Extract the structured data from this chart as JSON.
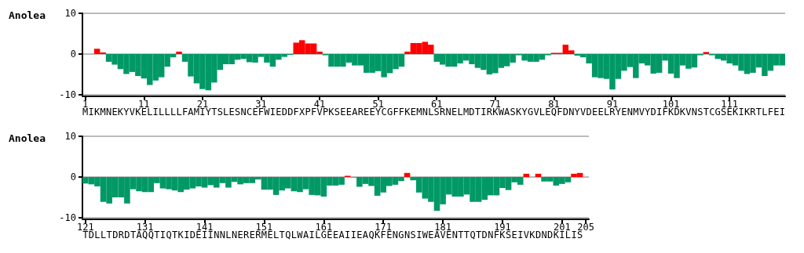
{
  "chart_data": [
    {
      "type": "bar",
      "ylabel": "Anolea",
      "ylim": [
        -10,
        10
      ],
      "yticks": [
        -10,
        0,
        10
      ],
      "grid": "y",
      "categories": [
        "M",
        "I",
        "K",
        "M",
        "N",
        "E",
        "K",
        "Y",
        "V",
        "K",
        "E",
        "L",
        "I",
        "L",
        "L",
        "L",
        "L",
        "F",
        "A",
        "M",
        "I",
        "Y",
        "T",
        "S",
        "L",
        "E",
        "S",
        "N",
        "C",
        "E",
        "F",
        "W",
        "I",
        "E",
        "D",
        "D",
        "F",
        "X",
        "P",
        "F",
        "V",
        "P",
        "K",
        "S",
        "E",
        "E",
        "A",
        "R",
        "E",
        "E",
        "Y",
        "C",
        "G",
        "F",
        "F",
        "K",
        "E",
        "M",
        "N",
        "L",
        "S",
        "R",
        "N",
        "E",
        "L",
        "M",
        "D",
        "T",
        "I",
        "R",
        "K",
        "W",
        "A",
        "S",
        "K",
        "Y",
        "G",
        "V",
        "L",
        "E",
        "Q",
        "F",
        "D",
        "N",
        "Y",
        "V",
        "D",
        "E",
        "E",
        "L",
        "R",
        "Y",
        "E",
        "N",
        "M",
        "V",
        "Y",
        "D",
        "I",
        "F",
        "K",
        "D",
        "K",
        "V",
        "N",
        "S",
        "T",
        "C",
        "G",
        "S",
        "E",
        "K",
        "I",
        "K",
        "R",
        "T",
        "L",
        "F",
        "E",
        "I"
      ],
      "x2lim": [
        0.5,
        120.5
      ],
      "x2ticks": [
        1,
        11,
        21,
        31,
        41,
        51,
        61,
        71,
        81,
        91,
        101,
        111
      ],
      "values": [
        0,
        0,
        1.3,
        0.4,
        -1.9,
        -2.6,
        -3.7,
        -4.9,
        -4.4,
        -5.4,
        -6.0,
        -7.6,
        -6.5,
        -5.7,
        -3.1,
        -0.8,
        0.6,
        -1.9,
        -5.5,
        -7.2,
        -8.6,
        -8.9,
        -7.0,
        -3.9,
        -2.5,
        -2.5,
        -1.4,
        -1.2,
        -2.0,
        -2.1,
        -0.7,
        -2.1,
        -3.1,
        -1.4,
        -0.7,
        -0.2,
        2.8,
        3.4,
        2.6,
        2.6,
        0.6,
        -0.3,
        -3.1,
        -3.1,
        -3.1,
        -2.1,
        -2.8,
        -2.8,
        -4.6,
        -4.6,
        -4.2,
        -5.7,
        -4.7,
        -3.7,
        -3.1,
        0.6,
        2.7,
        2.7,
        3.0,
        2.3,
        -1.9,
        -2.6,
        -3.1,
        -3.1,
        -2.3,
        -1.6,
        -2.5,
        -3.4,
        -3.9,
        -5.0,
        -4.7,
        -3.4,
        -3.0,
        -2.1,
        -0.3,
        -1.6,
        -1.9,
        -1.9,
        -1.4,
        -0.3,
        0.3,
        0.3,
        2.3,
        0.9,
        -0.4,
        -0.8,
        -2.3,
        -5.7,
        -5.9,
        -6.1,
        -8.7,
        -6.1,
        -4.1,
        -3.2,
        -5.9,
        -2.3,
        -2.8,
        -4.8,
        -4.6,
        -1.6,
        -4.8,
        -5.9,
        -2.8,
        -3.6,
        -3.3,
        -0.3,
        0.5,
        -0.3,
        -1.2,
        -1.6,
        -2.3,
        -2.8,
        -4.1,
        -4.9,
        -4.6,
        -3.3,
        -5.4,
        -4.1,
        -2.8,
        -2.8
      ],
      "colors": [
        "#009966",
        "#009966",
        "#ff0000",
        "#ff0000",
        "#009966",
        "#009966",
        "#009966",
        "#009966",
        "#009966",
        "#009966",
        "#009966",
        "#009966",
        "#009966",
        "#009966",
        "#009966",
        "#009966",
        "#ff0000",
        "#009966",
        "#009966",
        "#009966",
        "#009966",
        "#009966",
        "#009966",
        "#009966",
        "#009966",
        "#009966",
        "#009966",
        "#009966",
        "#009966",
        "#009966",
        "#009966",
        "#009966",
        "#009966",
        "#009966",
        "#009966",
        "#009966",
        "#ff0000",
        "#ff0000",
        "#ff0000",
        "#ff0000",
        "#ff0000",
        "#009966",
        "#009966",
        "#009966",
        "#009966",
        "#009966",
        "#009966",
        "#009966",
        "#009966",
        "#009966",
        "#009966",
        "#009966",
        "#009966",
        "#009966",
        "#009966",
        "#ff0000",
        "#ff0000",
        "#ff0000",
        "#ff0000",
        "#ff0000",
        "#009966",
        "#009966",
        "#009966",
        "#009966",
        "#009966",
        "#009966",
        "#009966",
        "#009966",
        "#009966",
        "#009966",
        "#009966",
        "#009966",
        "#009966",
        "#009966",
        "#009966",
        "#009966",
        "#009966",
        "#009966",
        "#009966",
        "#009966",
        "#ff0000",
        "#ff0000",
        "#ff0000",
        "#ff0000",
        "#009966",
        "#009966",
        "#009966",
        "#009966",
        "#009966",
        "#009966",
        "#009966",
        "#009966",
        "#009966",
        "#009966",
        "#009966",
        "#009966",
        "#009966",
        "#009966",
        "#009966",
        "#009966",
        "#009966",
        "#009966",
        "#009966",
        "#009966",
        "#009966",
        "#009966",
        "#ff0000",
        "#009966",
        "#009966",
        "#009966",
        "#009966",
        "#009966",
        "#009966",
        "#009966",
        "#009966",
        "#009966",
        "#009966",
        "#009966",
        "#009966",
        "#009966"
      ]
    },
    {
      "type": "bar",
      "ylabel": "Anolea",
      "ylim": [
        -10,
        10
      ],
      "yticks": [
        -10,
        0,
        10
      ],
      "grid": "y",
      "categories": [
        "T",
        "D",
        "L",
        "L",
        "T",
        "D",
        "R",
        "D",
        "T",
        "A",
        "Q",
        "Q",
        "T",
        "I",
        "Q",
        "T",
        "K",
        "I",
        "D",
        "E",
        "I",
        "I",
        "N",
        "N",
        "L",
        "N",
        "E",
        "R",
        "E",
        "R",
        "M",
        "E",
        "L",
        "T",
        "Q",
        "L",
        "W",
        "A",
        "I",
        "L",
        "G",
        "E",
        "E",
        "A",
        "I",
        "I",
        "E",
        "A",
        "Q",
        "K",
        "F",
        "E",
        "N",
        "G",
        "N",
        "S",
        "I",
        "W",
        "E",
        "A",
        "V",
        "E",
        "N",
        "T",
        "T",
        "Q",
        "T",
        "D",
        "N",
        "F",
        "K",
        "S",
        "E",
        "I",
        "V",
        "K",
        "D",
        "N",
        "D",
        "K",
        "I",
        "L",
        "I",
        "S",
        null
      ],
      "x2lim": [
        120.5,
        205.5
      ],
      "x2ticks": [
        121,
        131,
        141,
        151,
        161,
        171,
        181,
        191,
        201,
        205
      ],
      "values": [
        -1.6,
        -1.8,
        -2.3,
        -6.1,
        -6.5,
        -5.0,
        -5.0,
        -6.5,
        -3.0,
        -3.5,
        -3.7,
        -3.7,
        -1.5,
        -2.8,
        -3.0,
        -3.3,
        -3.7,
        -3.1,
        -2.8,
        -2.3,
        -2.6,
        -2.0,
        -2.6,
        -1.5,
        -2.6,
        -1.2,
        -1.8,
        -1.5,
        -1.5,
        -0.6,
        -3.1,
        -3.1,
        -4.4,
        -3.3,
        -2.8,
        -3.5,
        -3.7,
        -3.0,
        -4.4,
        -4.5,
        -4.8,
        -2.1,
        -2.1,
        -1.9,
        0.3,
        -0.1,
        -2.4,
        -1.7,
        -2.2,
        -4.6,
        -3.8,
        -2.2,
        -1.9,
        -1.0,
        1.0,
        -0.8,
        -3.8,
        -5.3,
        -6.1,
        -8.3,
        -6.7,
        -4.3,
        -4.8,
        -4.8,
        -4.3,
        -6.1,
        -6.1,
        -5.6,
        -4.5,
        -4.5,
        -2.7,
        -3.2,
        -1.3,
        -1.9,
        0.8,
        0,
        0.8,
        -1.1,
        -1.1,
        -2.1,
        -1.7,
        -1.3,
        0.8,
        1.0,
        0
      ],
      "colors": [
        "#009966",
        "#009966",
        "#009966",
        "#009966",
        "#009966",
        "#009966",
        "#009966",
        "#009966",
        "#009966",
        "#009966",
        "#009966",
        "#009966",
        "#009966",
        "#009966",
        "#009966",
        "#009966",
        "#009966",
        "#009966",
        "#009966",
        "#009966",
        "#009966",
        "#009966",
        "#009966",
        "#009966",
        "#009966",
        "#009966",
        "#009966",
        "#009966",
        "#009966",
        "#009966",
        "#009966",
        "#009966",
        "#009966",
        "#009966",
        "#009966",
        "#009966",
        "#009966",
        "#009966",
        "#009966",
        "#009966",
        "#009966",
        "#009966",
        "#009966",
        "#009966",
        "#ff0000",
        "#009966",
        "#009966",
        "#009966",
        "#009966",
        "#009966",
        "#009966",
        "#009966",
        "#009966",
        "#009966",
        "#ff0000",
        "#009966",
        "#009966",
        "#009966",
        "#009966",
        "#009966",
        "#009966",
        "#009966",
        "#009966",
        "#009966",
        "#009966",
        "#009966",
        "#009966",
        "#009966",
        "#009966",
        "#009966",
        "#009966",
        "#009966",
        "#009966",
        "#009966",
        "#ff0000",
        "#009966",
        "#ff0000",
        "#009966",
        "#009966",
        "#009966",
        "#009966",
        "#009966",
        "#ff0000",
        "#ff0000",
        "#009966"
      ]
    }
  ]
}
